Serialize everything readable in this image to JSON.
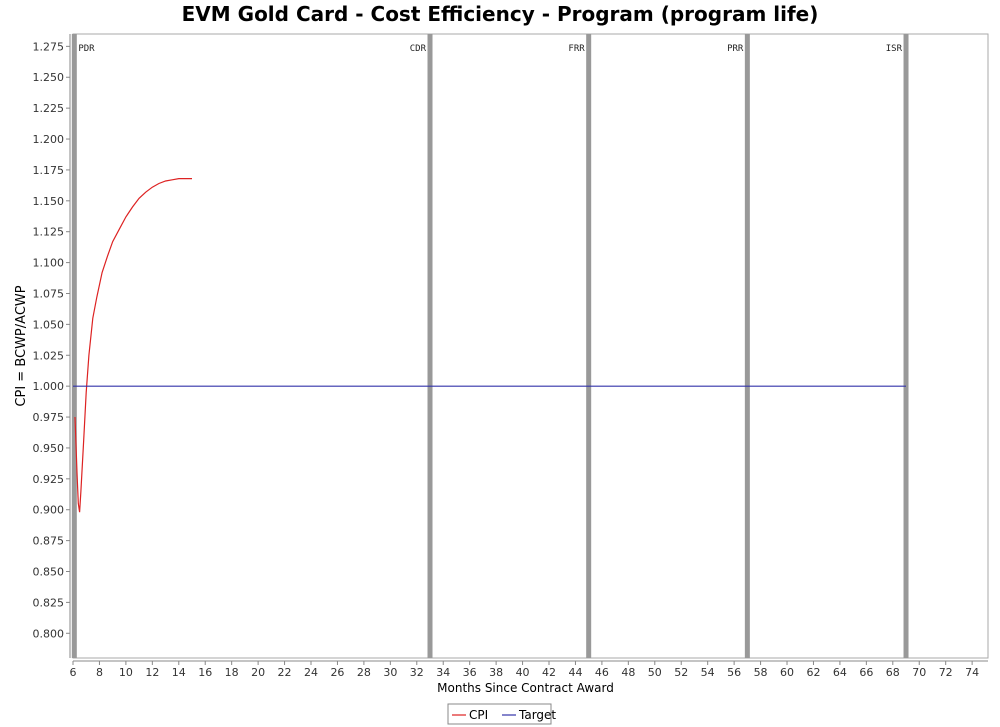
{
  "chart_data": {
    "type": "line",
    "title": "EVM Gold Card - Cost Efficiency - Program (program life)",
    "xlabel": "Months Since Contract Award",
    "ylabel": "CPI = BCWP/ACWP",
    "xlim": [
      6,
      75.2
    ],
    "ylim": [
      0.78,
      1.285
    ],
    "xticks": [
      6,
      8,
      10,
      12,
      14,
      16,
      18,
      20,
      22,
      24,
      26,
      28,
      30,
      32,
      34,
      36,
      38,
      40,
      42,
      44,
      46,
      48,
      50,
      52,
      54,
      56,
      58,
      60,
      62,
      64,
      66,
      68,
      70,
      72,
      74
    ],
    "yticks": [
      0.8,
      0.825,
      0.85,
      0.875,
      0.9,
      0.925,
      0.95,
      0.975,
      1.0,
      1.025,
      1.05,
      1.075,
      1.1,
      1.125,
      1.15,
      1.175,
      1.2,
      1.225,
      1.25,
      1.275
    ],
    "grid": false,
    "legend_position": "bottom",
    "series": [
      {
        "name": "CPI",
        "color": "#dd2222",
        "x": [
          6.15,
          6.3,
          6.4,
          6.5,
          6.6,
          6.8,
          7.0,
          7.2,
          7.5,
          7.8,
          8.2,
          8.6,
          9.0,
          9.5,
          10.0,
          10.5,
          11.0,
          11.5,
          12.0,
          12.5,
          13.0,
          13.5,
          14.0,
          14.5,
          15.0
        ],
        "y": [
          0.975,
          0.93,
          0.905,
          0.898,
          0.915,
          0.955,
          0.995,
          1.025,
          1.055,
          1.072,
          1.092,
          1.105,
          1.117,
          1.127,
          1.137,
          1.145,
          1.152,
          1.157,
          1.161,
          1.164,
          1.166,
          1.167,
          1.168,
          1.168,
          1.168
        ]
      },
      {
        "name": "Target",
        "color": "#3333aa",
        "x": [
          6,
          69
        ],
        "y": [
          1.0,
          1.0
        ]
      }
    ],
    "milestones": [
      {
        "label": "PDR",
        "x": 6.1,
        "label_side": "right"
      },
      {
        "label": "CDR",
        "x": 33.0,
        "label_side": "left"
      },
      {
        "label": "FRR",
        "x": 45.0,
        "label_side": "left"
      },
      {
        "label": "PRR",
        "x": 57.0,
        "label_side": "left"
      },
      {
        "label": "ISR",
        "x": 69.0,
        "label_side": "left"
      }
    ],
    "colors": {
      "milestone": "#999999",
      "axis": "#888888",
      "plot_border": "#aaaaaa"
    }
  }
}
